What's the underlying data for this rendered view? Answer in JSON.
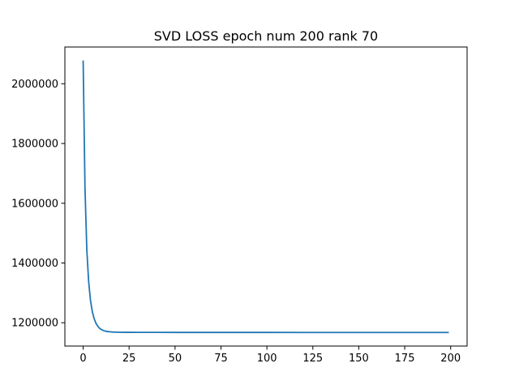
{
  "chart_data": {
    "type": "line",
    "title": "SVD LOSS epoch num 200 rank 70",
    "xlabel": "",
    "ylabel": "",
    "xlim": [
      -9.95,
      208.95
    ],
    "ylim": [
      1122000,
      2123000
    ],
    "grid": false,
    "legend": "none",
    "xticks": [
      0,
      25,
      50,
      75,
      100,
      125,
      150,
      175,
      200
    ],
    "yticks": [
      1200000,
      1400000,
      1600000,
      1800000,
      2000000
    ],
    "series": [
      {
        "color": "#1f77b4",
        "x": [
          0,
          1,
          2,
          3,
          4,
          5,
          6,
          7,
          8,
          9,
          10,
          11,
          12,
          13,
          14,
          15,
          16,
          18,
          20,
          23,
          26,
          30,
          40,
          50,
          75,
          100,
          125,
          150,
          175,
          199
        ],
        "y": [
          2078000,
          1649000,
          1443000,
          1337000,
          1274000,
          1237000,
          1213000,
          1198000,
          1188000,
          1181000,
          1177000,
          1174000,
          1172000,
          1171000,
          1170000,
          1169500,
          1169000,
          1168500,
          1168200,
          1168000,
          1167900,
          1167800,
          1167700,
          1167650,
          1167600,
          1167550,
          1167500,
          1167500,
          1167500,
          1167500
        ]
      }
    ]
  }
}
